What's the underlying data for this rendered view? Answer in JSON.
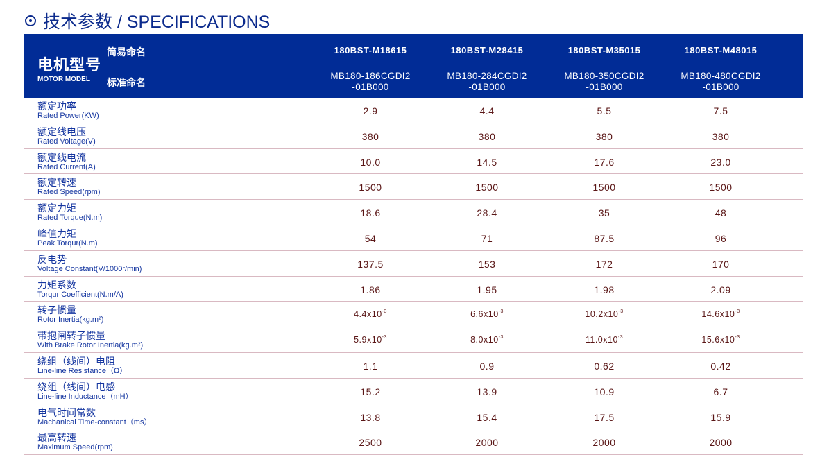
{
  "title": "技术参数 / SPECIFICATIONS",
  "header": {
    "model_cn": "电机型号",
    "model_en": "MOTOR MODEL",
    "short_label": "简易命名",
    "std_label": "标准命名",
    "models": [
      {
        "short": "180BST-M18615",
        "std1": "MB180-186CGDI2",
        "std2": "-01B000"
      },
      {
        "short": "180BST-M28415",
        "std1": "MB180-284CGDI2",
        "std2": "-01B000"
      },
      {
        "short": "180BST-M35015",
        "std1": "MB180-350CGDI2",
        "std2": "-01B000"
      },
      {
        "short": "180BST-M48015",
        "std1": "MB180-480CGDI2",
        "std2": "-01B000"
      }
    ]
  },
  "colors": {
    "header_bg": "#012c96",
    "label": "#1536a0",
    "value": "#5a1616",
    "divider": "#d9b9c2"
  },
  "rows": [
    {
      "cn": "额定功率",
      "en": "Rated Power(KW)",
      "values": [
        "2.9",
        "4.4",
        "5.5",
        "7.5"
      ]
    },
    {
      "cn": "额定线电压",
      "en": "Rated Voltage(V)",
      "values": [
        "380",
        "380",
        "380",
        "380"
      ]
    },
    {
      "cn": "额定线电流",
      "en": "Rated Current(A)",
      "values": [
        "10.0",
        "14.5",
        "17.6",
        "23.0"
      ]
    },
    {
      "cn": "额定转速",
      "en": "Rated Speed(rpm)",
      "values": [
        "1500",
        "1500",
        "1500",
        "1500"
      ]
    },
    {
      "cn": "额定力矩",
      "en": "Rated Torque(N.m)",
      "values": [
        "18.6",
        "28.4",
        "35",
        "48"
      ]
    },
    {
      "cn": "峰值力矩",
      "en": "Peak Torqur(N.m)",
      "values": [
        "54",
        "71",
        "87.5",
        "96"
      ]
    },
    {
      "cn": "反电势",
      "en": "Voltage Constant(V/1000r/min)",
      "values": [
        "137.5",
        "153",
        "172",
        "170"
      ]
    },
    {
      "cn": "力矩系数",
      "en": "Torqur Coefficient(N.m/A)",
      "values": [
        "1.86",
        "1.95",
        "1.98",
        "2.09"
      ]
    },
    {
      "cn": "转子惯量",
      "en": "Rotor Inertia(kg.m²)",
      "values": [
        "4.4x10",
        "6.6x10",
        "10.2x10",
        "14.6x10"
      ],
      "exp": "-3"
    },
    {
      "cn": "带抱闸转子惯量",
      "en": "With Brake Rotor Inertia(kg.m²)",
      "values": [
        "5.9x10",
        "8.0x10",
        "11.0x10",
        "15.6x10"
      ],
      "exp": "-3"
    },
    {
      "cn": "绕组（线间）电阻",
      "en": "Line-line Resistance（Ω）",
      "values": [
        "1.1",
        "0.9",
        "0.62",
        "0.42"
      ]
    },
    {
      "cn": "绕组（线间）电感",
      "en": "Line-line Inductance（mH）",
      "values": [
        "15.2",
        "13.9",
        "10.9",
        "6.7"
      ]
    },
    {
      "cn": "电气时间常数",
      "en": "Machanical Time-constant（ms）",
      "values": [
        "13.8",
        "15.4",
        "17.5",
        "15.9"
      ]
    },
    {
      "cn": "最高转速",
      "en": "Maximum Speed(rpm)",
      "values": [
        "2500",
        "2000",
        "2000",
        "2000"
      ]
    }
  ]
}
